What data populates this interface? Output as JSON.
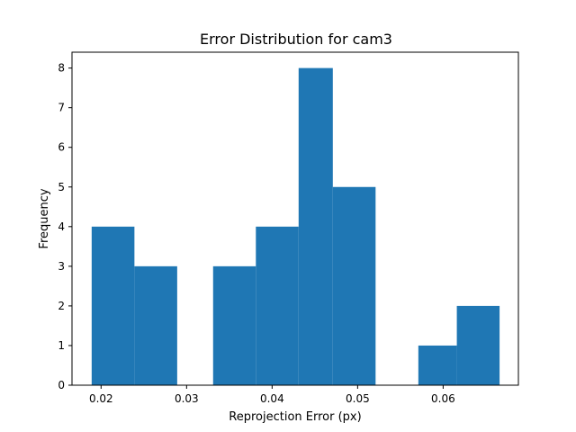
{
  "chart_data": {
    "type": "bar",
    "title": "Error Distribution for cam3",
    "xlabel": "Reprojection Error (px)",
    "ylabel": "Frequency",
    "xlim": [
      0.0166,
      0.0688
    ],
    "ylim": [
      0,
      8.4
    ],
    "xticks": [
      0.02,
      0.03,
      0.04,
      0.05,
      0.06
    ],
    "xtick_labels": [
      "0.02",
      "0.03",
      "0.04",
      "0.05",
      "0.06"
    ],
    "yticks": [
      0,
      1,
      2,
      3,
      4,
      5,
      6,
      7,
      8
    ],
    "ytick_labels": [
      "0",
      "1",
      "2",
      "3",
      "4",
      "5",
      "6",
      "7",
      "8"
    ],
    "bin_edges": [
      0.0189,
      0.0239,
      0.0289,
      0.0331,
      0.0381,
      0.0431,
      0.0471,
      0.0521,
      0.0571,
      0.0616,
      0.0666
    ],
    "values": [
      4,
      3,
      0,
      3,
      4,
      8,
      5,
      0,
      1,
      2
    ],
    "bar_color": "#1f77b4",
    "grid": false,
    "legend": false
  }
}
